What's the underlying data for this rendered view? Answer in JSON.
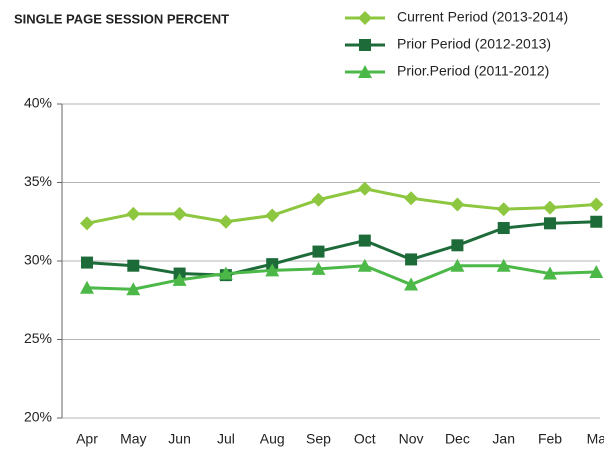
{
  "chart_data": {
    "type": "line",
    "title": "SINGLE PAGE SESSION PERCENT",
    "categories": [
      "Apr",
      "May",
      "Jun",
      "Jul",
      "Aug",
      "Sep",
      "Oct",
      "Nov",
      "Dec",
      "Jan",
      "Feb",
      "Ma"
    ],
    "series": [
      {
        "name": "Current Period (2013-2014)",
        "color": "#8dc63f",
        "marker": "diamond",
        "values": [
          32.4,
          33.0,
          33.0,
          32.5,
          32.9,
          33.9,
          34.6,
          34.0,
          33.6,
          33.3,
          33.4,
          33.6
        ]
      },
      {
        "name": "Prior Period (2012-2013)",
        "color": "#1e6b3a",
        "marker": "square",
        "values": [
          29.9,
          29.7,
          29.2,
          29.1,
          29.8,
          30.6,
          31.3,
          30.1,
          31.0,
          32.1,
          32.4,
          32.5
        ]
      },
      {
        "name": "Prior.Period (2011-2012)",
        "color": "#4cb848",
        "marker": "triangle",
        "values": [
          28.3,
          28.2,
          28.8,
          29.2,
          29.4,
          29.5,
          29.7,
          28.5,
          29.7,
          29.7,
          29.2,
          29.3
        ]
      }
    ],
    "ylim": [
      20,
      40
    ],
    "yticks": [
      {
        "value": 20,
        "label": "20%"
      },
      {
        "value": 25,
        "label": "25%"
      },
      {
        "value": 30,
        "label": "30%"
      },
      {
        "value": 35,
        "label": "35%"
      },
      {
        "value": 40,
        "label": "40%"
      }
    ],
    "grid": true
  }
}
